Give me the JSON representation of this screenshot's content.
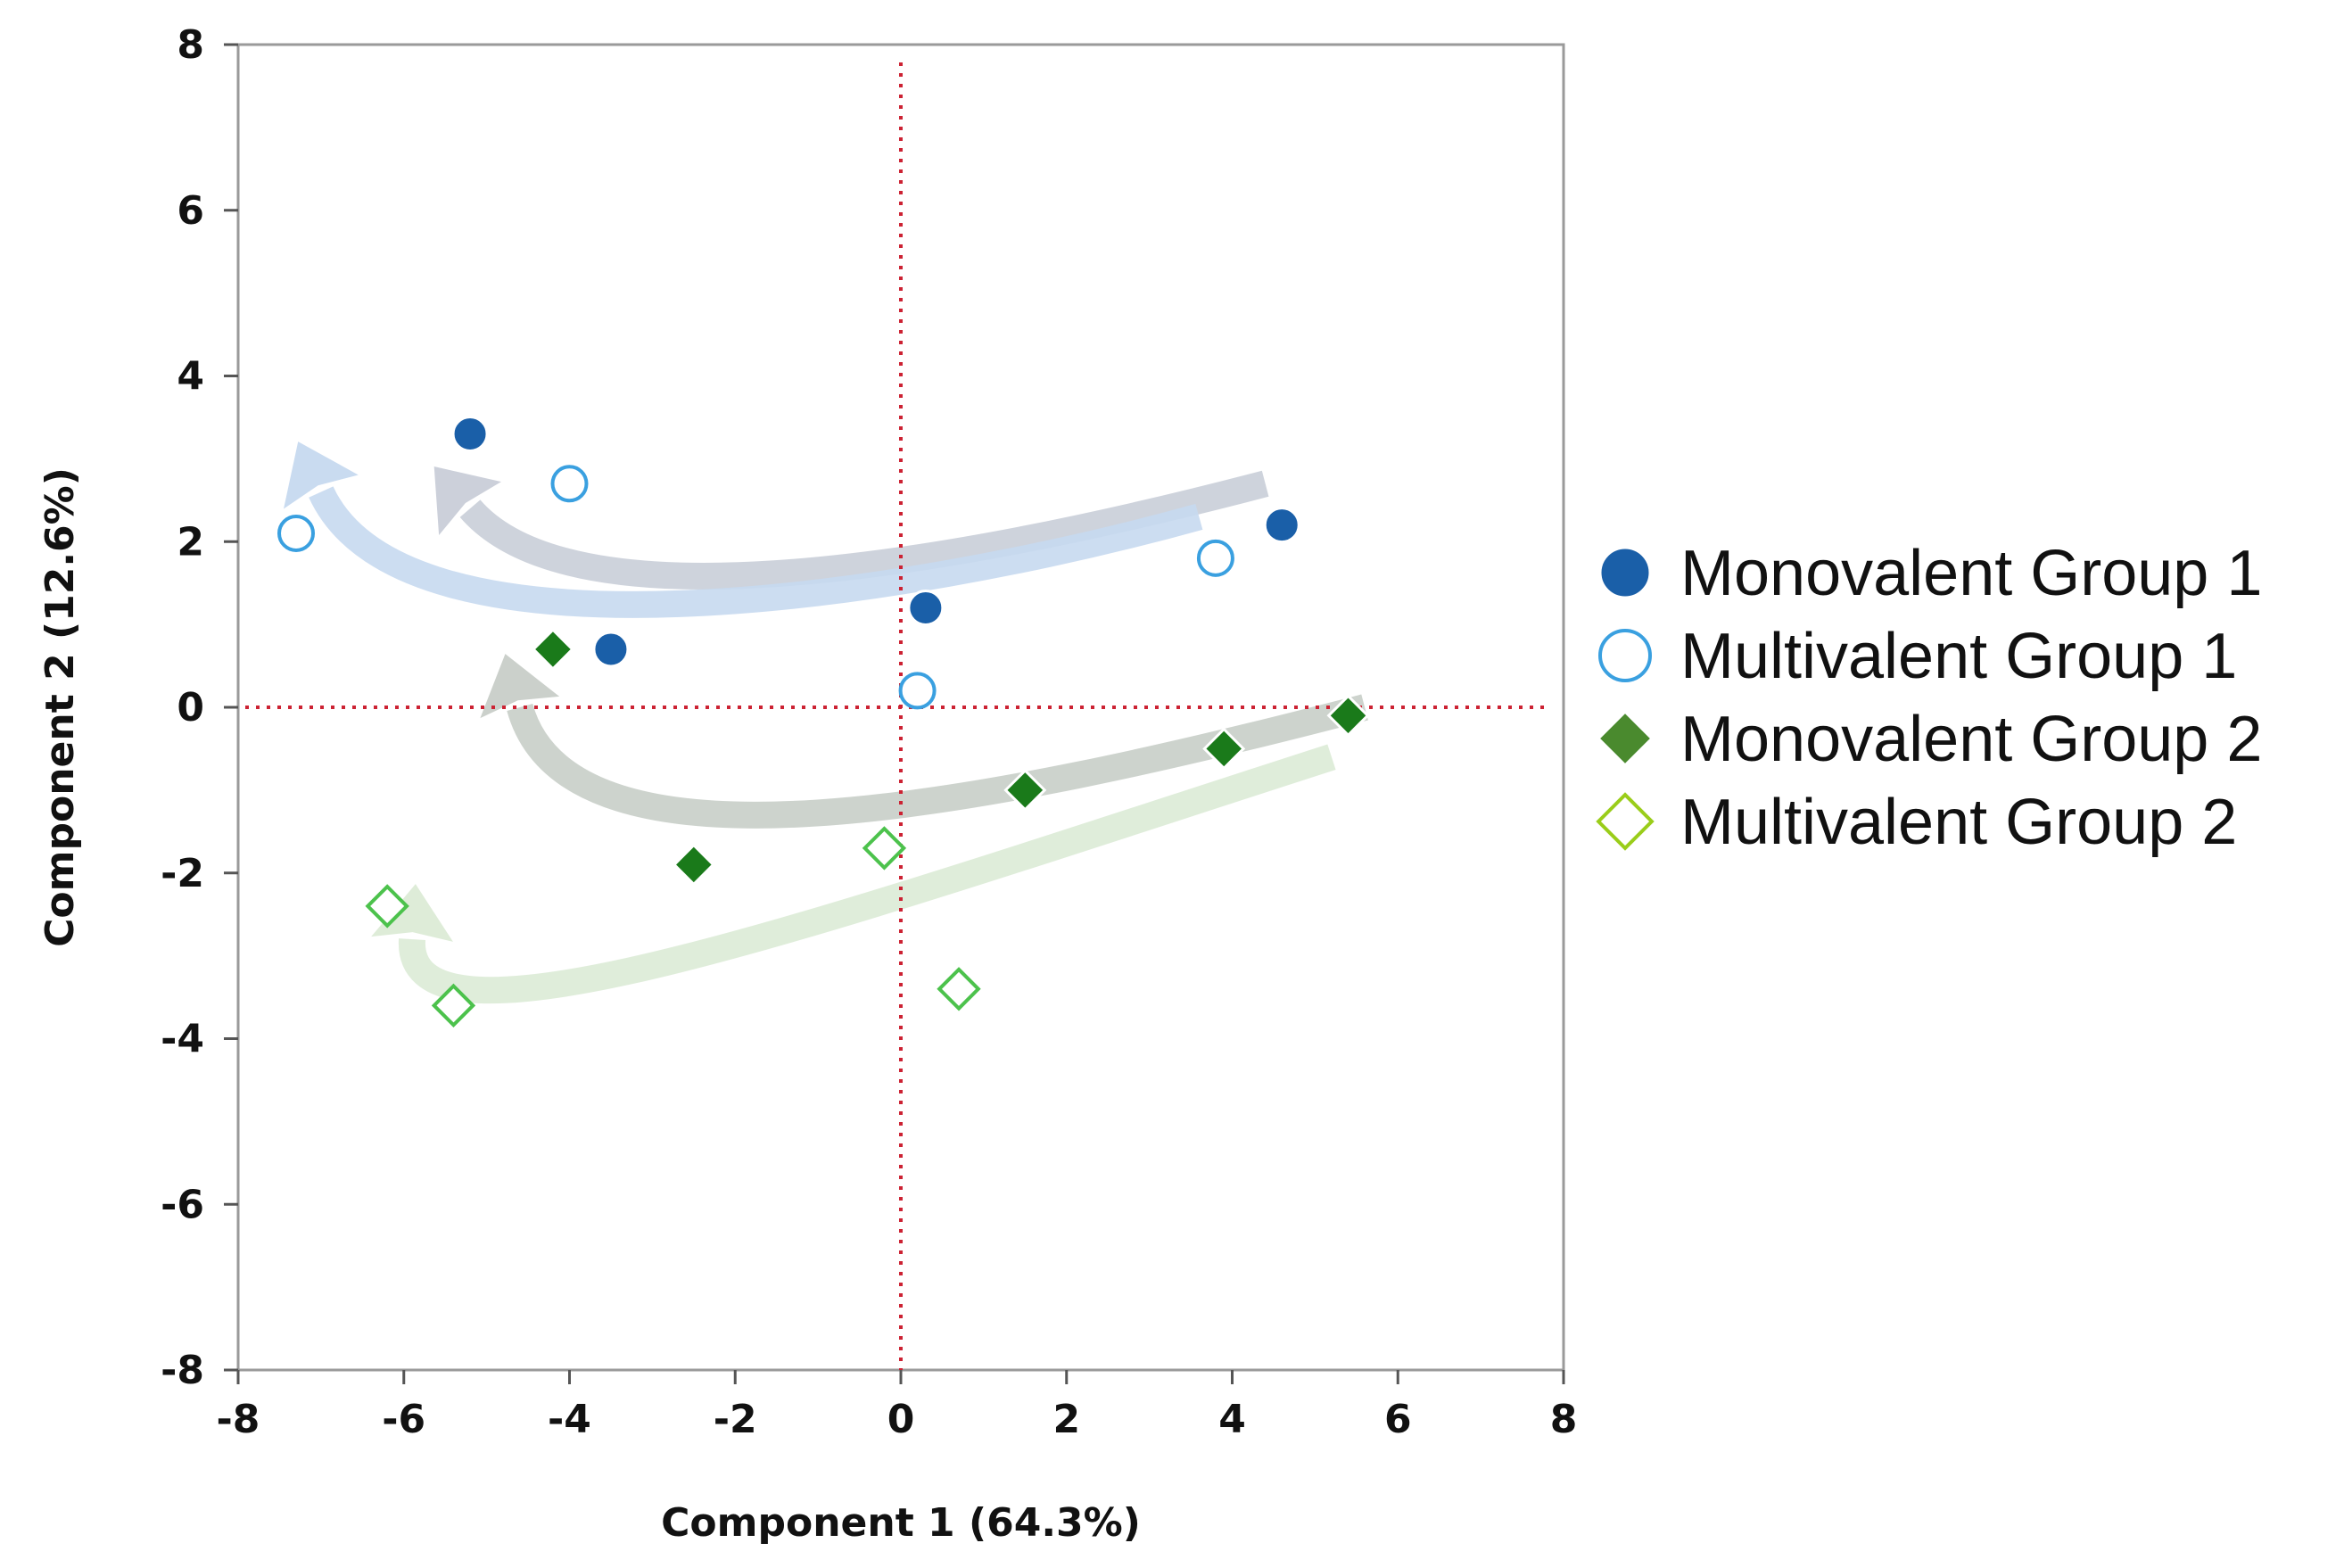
{
  "chart_data": {
    "type": "scatter",
    "title": "",
    "xlabel": "Component 1 (64.3%)",
    "ylabel": "Component 2 (12.6%)",
    "xlim": [
      -8,
      8
    ],
    "ylim": [
      -8,
      8
    ],
    "xticks": [
      "-8",
      "-6",
      "-4",
      "-2",
      "0",
      "2",
      "4",
      "6",
      "8"
    ],
    "yticks": [
      "8",
      "6",
      "4",
      "2",
      "0",
      "-2",
      "-4",
      "-6",
      "-8"
    ],
    "reference_lines": {
      "x": 0,
      "y": 0,
      "style": "dotted",
      "color": "#cc2233"
    },
    "legend_position": "right",
    "series": [
      {
        "name": "Monovalent Group 1",
        "marker": "circle-filled",
        "color": "#1a5fa8",
        "points": [
          [
            -5.2,
            3.3
          ],
          [
            -3.5,
            0.7
          ],
          [
            0.3,
            1.2
          ],
          [
            4.6,
            2.2
          ]
        ]
      },
      {
        "name": "Multivalent Group 1",
        "marker": "circle-open",
        "color": "#3aa0e0",
        "points": [
          [
            -7.3,
            2.1
          ],
          [
            -4.0,
            2.7
          ],
          [
            0.2,
            0.2
          ],
          [
            3.8,
            1.8
          ]
        ]
      },
      {
        "name": "Monovalent Group 2",
        "marker": "diamond-filled",
        "color": "#1a7a1a",
        "points": [
          [
            -4.2,
            0.7
          ],
          [
            -2.5,
            -1.9
          ],
          [
            1.5,
            -1.0
          ],
          [
            3.9,
            -0.5
          ],
          [
            5.4,
            -0.1
          ]
        ]
      },
      {
        "name": "Multivalent Group 2",
        "marker": "diamond-open",
        "color": "#4cc24c",
        "points": [
          [
            -6.2,
            -2.4
          ],
          [
            -5.4,
            -3.6
          ],
          [
            -0.2,
            -1.7
          ],
          [
            0.7,
            -3.4
          ]
        ]
      }
    ],
    "trend_arrows": [
      {
        "series": "Monovalent Group 1",
        "color": "#c9ced8",
        "points": [
          [
            4.4,
            2.7
          ],
          [
            0.2,
            1.6
          ],
          [
            -4.0,
            1.0
          ],
          [
            -5.2,
            2.4
          ]
        ]
      },
      {
        "series": "Multivalent Group 1",
        "color": "#c6d9ef",
        "points": [
          [
            3.6,
            2.3
          ],
          [
            0.0,
            1.3
          ],
          [
            -6.0,
            0.4
          ],
          [
            -7.0,
            2.6
          ]
        ]
      },
      {
        "series": "Monovalent Group 2",
        "color": "#c8cec8",
        "points": [
          [
            5.6,
            0.0
          ],
          [
            1.0,
            -1.2
          ],
          [
            -4.0,
            -2.2
          ],
          [
            -4.6,
            0.0
          ]
        ]
      },
      {
        "series": "Multivalent Group 2",
        "color": "#dcebd6",
        "points": [
          [
            5.2,
            -0.6
          ],
          [
            -1.0,
            -2.6
          ],
          [
            -6.0,
            -4.4
          ],
          [
            -5.9,
            -2.8
          ]
        ]
      }
    ]
  },
  "legend": {
    "items": [
      {
        "label": "Monovalent Group 1",
        "marker": "circle-filled",
        "color": "#1a5fa8"
      },
      {
        "label": "Multivalent Group 1",
        "marker": "circle-open",
        "color": "#3aa0e0"
      },
      {
        "label": "Monovalent Group 2",
        "marker": "diamond-filled",
        "color": "#4a8a2e"
      },
      {
        "label": "Multivalent Group 2",
        "marker": "diamond-open",
        "color": "#9acd1a"
      }
    ]
  }
}
